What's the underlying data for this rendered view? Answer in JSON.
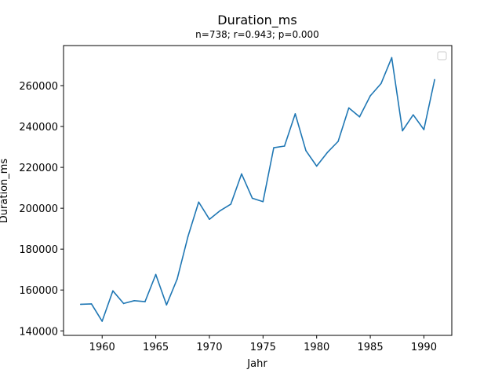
{
  "chart_data": {
    "type": "line",
    "title": "Duration_ms",
    "subtitle": "n=738; r=0.943; p=0.000",
    "xlabel": "Jahr",
    "ylabel": "Duration_ms",
    "xlim": [
      1956.4,
      1992.6
    ],
    "ylim": [
      137800,
      279600
    ],
    "xticks": [
      1960,
      1965,
      1970,
      1975,
      1980,
      1985,
      1990
    ],
    "xtick_labels": [
      "1960",
      "1965",
      "1970",
      "1975",
      "1980",
      "1985",
      "1990"
    ],
    "yticks": [
      140000,
      160000,
      180000,
      200000,
      220000,
      240000,
      260000
    ],
    "ytick_labels": [
      "140000",
      "160000",
      "180000",
      "200000",
      "220000",
      "240000",
      "260000"
    ],
    "grid": false,
    "legend": "top-right, empty",
    "series": [
      {
        "color": "#1f77b4",
        "x": [
          1958,
          1959,
          1960,
          1961,
          1962,
          1963,
          1964,
          1965,
          1966,
          1967,
          1968,
          1969,
          1970,
          1971,
          1972,
          1973,
          1974,
          1975,
          1976,
          1977,
          1978,
          1979,
          1980,
          1981,
          1982,
          1983,
          1984,
          1985,
          1986,
          1987,
          1988,
          1989,
          1990,
          1991
        ],
        "y": [
          153000,
          153200,
          144700,
          159600,
          153400,
          154800,
          154300,
          167600,
          152700,
          165400,
          186100,
          203000,
          194600,
          198800,
          202000,
          216800,
          204900,
          203200,
          229600,
          230400,
          246200,
          228200,
          220600,
          227300,
          232700,
          249100,
          244700,
          255000,
          261000,
          273700,
          237900,
          245700,
          238500,
          262900
        ]
      }
    ]
  }
}
